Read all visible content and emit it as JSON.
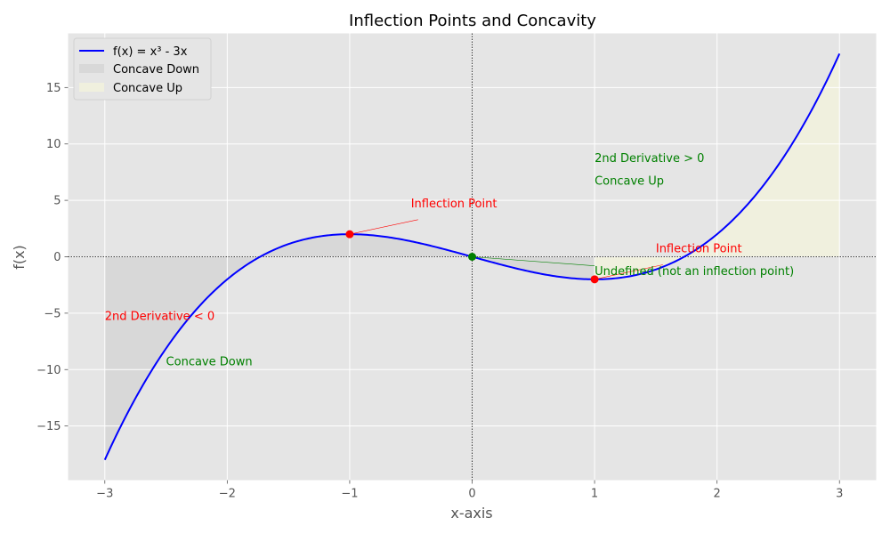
{
  "chart_data": {
    "type": "line",
    "title": "Inflection Points and Concavity",
    "xlabel": "x-axis",
    "ylabel": "f(x)",
    "xlim": [
      -3.3,
      3.3
    ],
    "ylim": [
      -19.8,
      19.8
    ],
    "xticks": [
      -3,
      -2,
      -1,
      0,
      1,
      2,
      3
    ],
    "xtick_labels": [
      "−3",
      "−2",
      "−1",
      "0",
      "1",
      "2",
      "3"
    ],
    "yticks": [
      -15,
      -10,
      -5,
      0,
      5,
      10,
      15
    ],
    "ytick_labels": [
      "−15",
      "−10",
      "−5",
      "0",
      "5",
      "10",
      "15"
    ],
    "grid": true,
    "legend_position": "top-left",
    "series": [
      {
        "name": "f(x) = x³ - 3x",
        "function": "x^3 - 3x",
        "x_range": [
          -3,
          3
        ],
        "color": "#0000ff"
      }
    ],
    "fills": [
      {
        "name": "Concave Down",
        "x_range": [
          -3,
          1
        ],
        "color": "#d3d3d3"
      },
      {
        "name": "Concave Up",
        "x_range": [
          1,
          3
        ],
        "color": "#f5f5dc"
      }
    ],
    "points": [
      {
        "x": -1,
        "y": 2,
        "color": "#ff0000"
      },
      {
        "x": 1,
        "y": -2,
        "color": "#ff0000"
      },
      {
        "x": 0,
        "y": 0,
        "color": "#008000"
      }
    ],
    "annotations": [
      {
        "text": "Inflection Point",
        "x": -0.5,
        "y": 4,
        "color": "#ff0000",
        "arrow_to": [
          -1,
          2
        ]
      },
      {
        "text": "Inflection Point",
        "x": 1.5,
        "y": 0,
        "color": "#ff0000",
        "arrow_to": [
          1,
          -2
        ]
      },
      {
        "text": "Undefined (not an inflection point)",
        "x": 1,
        "y": -2,
        "color": "#008000",
        "arrow_to": [
          0,
          0
        ],
        "arrow_from": [
          1,
          -0.8
        ]
      },
      {
        "text": "2nd Derivative > 0",
        "x": 1,
        "y": 8,
        "color": "#008000"
      },
      {
        "text": "Concave Up",
        "x": 1,
        "y": 6,
        "color": "#008000"
      },
      {
        "text": "2nd Derivative < 0",
        "x": -3,
        "y": -6,
        "color": "#ff0000"
      },
      {
        "text": "Concave Down",
        "x": -2.5,
        "y": -10,
        "color": "#008000"
      }
    ]
  }
}
